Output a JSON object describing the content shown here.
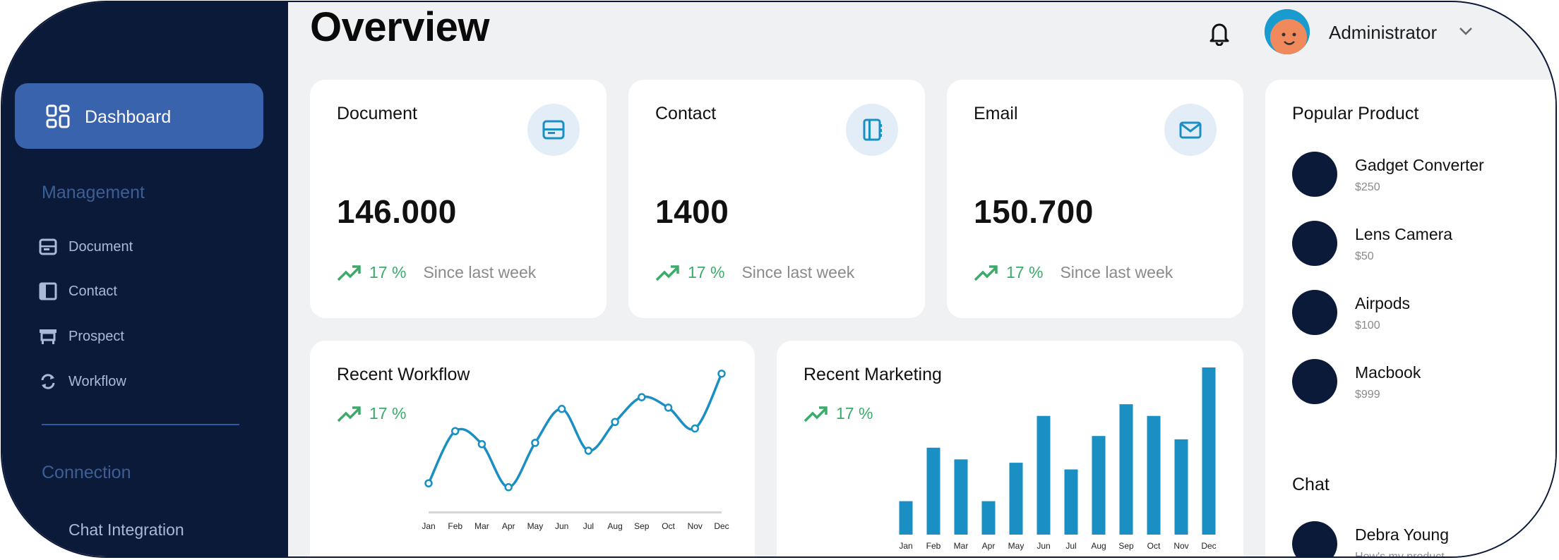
{
  "sidebar": {
    "active": {
      "label": "Dashboard",
      "icon": "dashboard-icon"
    },
    "management_title": "Management",
    "management_items": [
      {
        "label": "Document",
        "icon": "document-icon"
      },
      {
        "label": "Contact",
        "icon": "contact-icon"
      },
      {
        "label": "Prospect",
        "icon": "prospect-icon"
      },
      {
        "label": "Workflow",
        "icon": "workflow-icon"
      }
    ],
    "connection_title": "Connection",
    "connection_items": [
      {
        "label": "Chat Integration",
        "icon": "chat-icon"
      }
    ]
  },
  "header": {
    "title": "Overview",
    "user": "Administrator"
  },
  "stats": [
    {
      "title": "Document",
      "value": "146.000",
      "pct": "17 %",
      "since": "Since last week",
      "icon": "tray-icon"
    },
    {
      "title": "Contact",
      "value": "1400",
      "pct": "17 %",
      "since": "Since last week",
      "icon": "address-book-icon"
    },
    {
      "title": "Email",
      "value": "150.700",
      "pct": "17 %",
      "since": "Since last week",
      "icon": "envelope-icon"
    }
  ],
  "workflow": {
    "title": "Recent Workflow",
    "pct": "17 %",
    "chart_data": {
      "type": "line",
      "title": "Recent Workflow",
      "categories": [
        "Jan",
        "Feb",
        "Mar",
        "Apr",
        "May",
        "Jun",
        "Jul",
        "Aug",
        "Sep",
        "Oct",
        "Nov",
        "Dec"
      ],
      "x": [
        0,
        1,
        2,
        3,
        4,
        5,
        6,
        7,
        8,
        9,
        10,
        11
      ],
      "values": [
        15,
        55,
        45,
        12,
        46,
        72,
        40,
        62,
        81,
        73,
        57,
        99
      ],
      "ylim": [
        0,
        100
      ],
      "grid": false
    }
  },
  "marketing": {
    "title": "Recent Marketing",
    "pct": "17 %",
    "chart_data": {
      "type": "bar",
      "title": "Recent Marketing",
      "categories": [
        "Jan",
        "Feb",
        "Mar",
        "Apr",
        "May",
        "Jun",
        "Jul",
        "Aug",
        "Sep",
        "Oct",
        "Nov",
        "Dec"
      ],
      "values": [
        20,
        52,
        45,
        20,
        43,
        71,
        39,
        59,
        78,
        71,
        57,
        100
      ],
      "ylim": [
        0,
        100
      ],
      "grid": false
    }
  },
  "popular": {
    "title": "Popular Product",
    "items": [
      {
        "name": "Gadget Converter",
        "price": "$250"
      },
      {
        "name": "Lens Camera",
        "price": "$50"
      },
      {
        "name": "Airpods",
        "price": "$100"
      },
      {
        "name": "Macbook",
        "price": "$999"
      }
    ]
  },
  "chat": {
    "title": "Chat",
    "items": [
      {
        "name": "Debra Young",
        "message": "How's my product..."
      }
    ]
  },
  "colors": {
    "sidebar": "#0c1a3a",
    "active": "#3a63ad",
    "accent": "#1a8fc4",
    "positive": "#3bab6a"
  }
}
